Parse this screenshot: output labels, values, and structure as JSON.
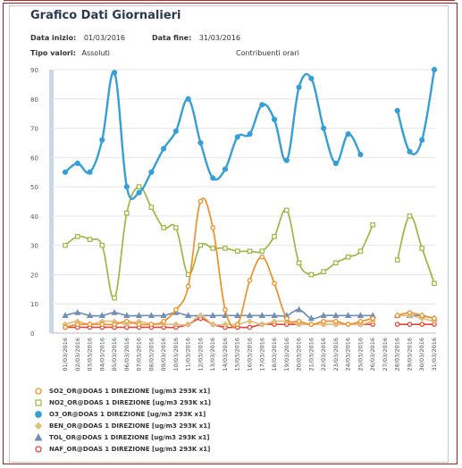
{
  "header": {
    "title": "Grafico Dati Giornalieri",
    "start_label": "Data inizio:",
    "start_value": "01/03/2016",
    "end_label": "Data fine:",
    "end_value": "31/03/2016",
    "type_label": "Tipo valori:",
    "type_value": "Assoluti",
    "contrib_label": "Contribuenti orari"
  },
  "chart_data": {
    "type": "line",
    "categories": [
      "01/03/2016",
      "02/03/2016",
      "03/03/2016",
      "04/03/2016",
      "05/03/2016",
      "06/03/2016",
      "07/03/2016",
      "08/03/2016",
      "09/03/2016",
      "10/03/2016",
      "11/03/2016",
      "12/03/2016",
      "13/03/2016",
      "14/03/2016",
      "15/03/2016",
      "16/03/2016",
      "17/03/2016",
      "18/03/2016",
      "19/03/2016",
      "20/03/2016",
      "21/03/2016",
      "22/03/2016",
      "23/03/2016",
      "24/03/2016",
      "25/03/2016",
      "26/03/2016",
      "27/03/2016",
      "28/03/2016",
      "29/03/2016",
      "30/03/2016",
      "31/03/2016"
    ],
    "ylim": [
      0,
      90
    ],
    "yticks": [
      "0",
      "10",
      "20",
      "30",
      "40",
      "50",
      "60",
      "70",
      "80",
      "90"
    ],
    "grid": true,
    "legend_position": "bottom",
    "series": [
      {
        "name": "SO2_OR@DOAS 1 DIREZIONE [ug/m3 293K x1]",
        "color": "#f0902a",
        "marker": "circle-open",
        "values": [
          2,
          3,
          3,
          3,
          3,
          4,
          3,
          3,
          4,
          8,
          16,
          45,
          36,
          8,
          3,
          18,
          26,
          17,
          5,
          4,
          3,
          4,
          4,
          3,
          4,
          5,
          null,
          6,
          7,
          6,
          5
        ]
      },
      {
        "name": "NO2_OR@DOAS 1 DIREZIONE [ug/m3 293K x1]",
        "color": "#9ab842",
        "marker": "square-open",
        "values": [
          30,
          33,
          32,
          30,
          12,
          41,
          50,
          43,
          36,
          36,
          20,
          30,
          29,
          29,
          28,
          28,
          28,
          33,
          42,
          24,
          20,
          21,
          24,
          26,
          28,
          37,
          null,
          25,
          40,
          29,
          17
        ]
      },
      {
        "name": "O3_OR@DOAS 1 DIREZIONE [ug/m3 293K x1]",
        "color": "#36a0d6",
        "marker": "circle-filled",
        "values": [
          55,
          58,
          55,
          66,
          89,
          50,
          48,
          55,
          63,
          69,
          80,
          65,
          53,
          56,
          67,
          68,
          78,
          73,
          59,
          84,
          87,
          70,
          58,
          68,
          61,
          null,
          null,
          76,
          62,
          66,
          90
        ]
      },
      {
        "name": "BEN_OR@DOAS 1 DIREZIONE [ug/m3 293K x1]",
        "color": "#e0c080",
        "marker": "diamond",
        "values": [
          3,
          4,
          3,
          4,
          4,
          3,
          4,
          3,
          3,
          3,
          3,
          6,
          3,
          3,
          3,
          4,
          3,
          4,
          4,
          3,
          3,
          3,
          3,
          3,
          3,
          4,
          null,
          6,
          6,
          5,
          4
        ]
      },
      {
        "name": "TOL_OR@DOAS 1 DIREZIONE [ug/m3 293K x1]",
        "color": "#6f8fb3",
        "marker": "triangle",
        "values": [
          6,
          7,
          6,
          6,
          7,
          6,
          6,
          6,
          6,
          7,
          6,
          6,
          6,
          6,
          6,
          6,
          6,
          6,
          6,
          8,
          5,
          6,
          6,
          6,
          6,
          6,
          null,
          6,
          6,
          6,
          5
        ]
      },
      {
        "name": "NAF_OR@DOAS 1 DIREZIONE [ug/m3 293K x1]",
        "color": "#e8453a",
        "marker": "circle-open",
        "values": [
          2,
          2,
          2,
          2,
          2,
          2,
          2,
          2,
          2,
          2,
          3,
          5,
          3,
          2,
          2,
          2,
          3,
          3,
          3,
          3,
          3,
          3,
          3,
          3,
          3,
          3,
          null,
          3,
          3,
          3,
          3
        ]
      }
    ]
  }
}
